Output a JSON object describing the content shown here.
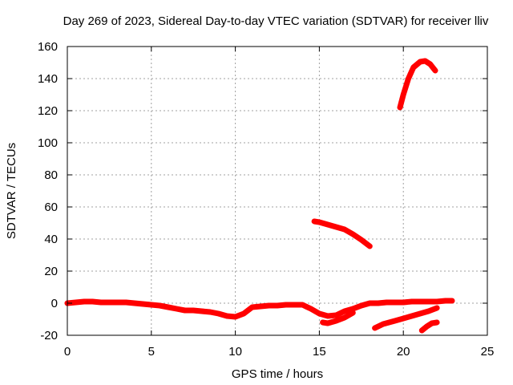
{
  "chart_data": {
    "type": "line",
    "title": "Day 269 of 2023, Sidereal Day-to-day VTEC variation (SDTVAR) for receiver lliv",
    "xlabel": "GPS time / hours",
    "ylabel": "SDTVAR / TECUs",
    "xlim": [
      0,
      25
    ],
    "ylim": [
      -20,
      160
    ],
    "xticks": [
      0,
      5,
      10,
      15,
      20,
      25
    ],
    "yticks": [
      -20,
      0,
      20,
      40,
      60,
      80,
      100,
      120,
      140,
      160
    ],
    "grid": true,
    "legend": "none",
    "color": "#ff0000",
    "series": [
      {
        "x": [
          0,
          0.5,
          1,
          1.5,
          2,
          2.5,
          3,
          3.5,
          4,
          4.5,
          5,
          5.5,
          6,
          6.5,
          7,
          7.5,
          8,
          8.5,
          9,
          9.5,
          10,
          10.5,
          11,
          11.5,
          12,
          12.5,
          13,
          13.5,
          14,
          14.5,
          15,
          15.5,
          16,
          16.5,
          17,
          17.5,
          18,
          18.5,
          19,
          19.5,
          20,
          20.5,
          21,
          21.5,
          22,
          22.5,
          22.9
        ],
        "y": [
          0,
          0.5,
          1,
          1,
          0.5,
          0.5,
          0.5,
          0.5,
          0,
          -0.5,
          -1,
          -1.5,
          -2.5,
          -3.5,
          -4.5,
          -4.5,
          -5,
          -5.5,
          -6.5,
          -8,
          -8.5,
          -6.5,
          -2.5,
          -2,
          -1.5,
          -1.5,
          -1,
          -1,
          -1,
          -3.5,
          -6.5,
          -8,
          -7.5,
          -5,
          -3.5,
          -1.5,
          0,
          0,
          0.5,
          0.5,
          0.5,
          1,
          1,
          1,
          1,
          1.5,
          1.5
        ]
      },
      {
        "x": [
          14.7,
          15,
          15.5,
          16,
          16.5,
          17,
          17.5,
          18
        ],
        "y": [
          51,
          50.5,
          49,
          47.5,
          46,
          43,
          39.5,
          35.5
        ]
      },
      {
        "x": [
          19.8,
          20,
          20.3,
          20.6,
          21,
          21.3,
          21.6,
          21.9
        ],
        "y": [
          122,
          130,
          140,
          147,
          150.5,
          151,
          149,
          145
        ]
      },
      {
        "x": [
          15.2,
          15.5,
          16,
          16.5,
          17
        ],
        "y": [
          -12,
          -12.5,
          -11,
          -9,
          -6
        ]
      },
      {
        "x": [
          18.3,
          18.8,
          19.5,
          20.5,
          21.5,
          22
        ],
        "y": [
          -15.5,
          -13,
          -11,
          -8,
          -5,
          -3
        ]
      },
      {
        "x": [
          21.1,
          21.4,
          21.7,
          22
        ],
        "y": [
          -17,
          -14.5,
          -12.5,
          -12
        ]
      }
    ]
  }
}
